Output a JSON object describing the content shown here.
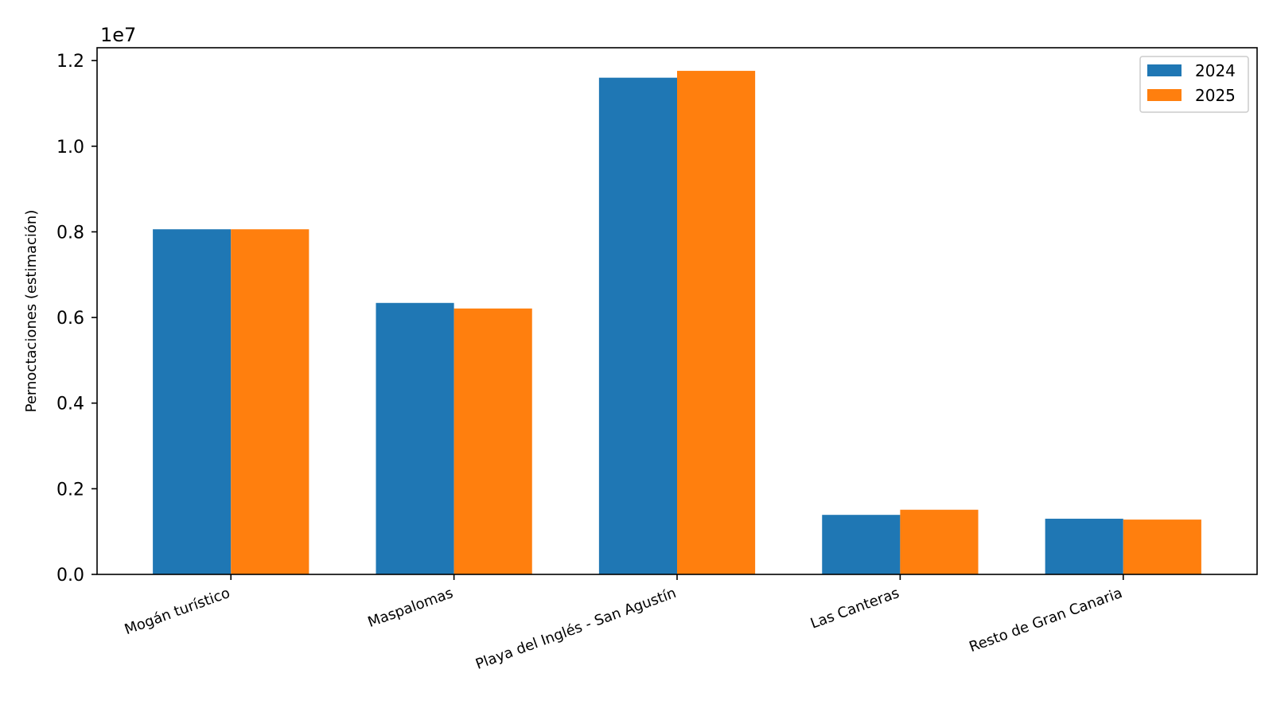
{
  "chart_data": {
    "type": "bar",
    "title": "",
    "xlabel": "",
    "ylabel": "Pernoctaciones (estimación)",
    "offset_label": "1e7",
    "ylim": [
      0,
      1.23
    ],
    "y_ticks": [
      "0.0",
      "0.2",
      "0.4",
      "0.6",
      "0.8",
      "1.0",
      "1.2"
    ],
    "categories": [
      "Mogán turístico",
      "Maspalomas",
      "Playa del Inglés - San Agustín",
      "Las Canteras",
      "Resto de Gran Canaria"
    ],
    "series": [
      {
        "name": "2024",
        "color": "#1f77b4",
        "values": [
          8060000,
          6340000,
          11600000,
          1390000,
          1300000
        ]
      },
      {
        "name": "2025",
        "color": "#ff7f0e",
        "values": [
          8060000,
          6210000,
          11760000,
          1510000,
          1280000
        ]
      }
    ],
    "legend": {
      "placement": "top-right",
      "entries": [
        "2024",
        "2025"
      ]
    },
    "grid": false
  }
}
